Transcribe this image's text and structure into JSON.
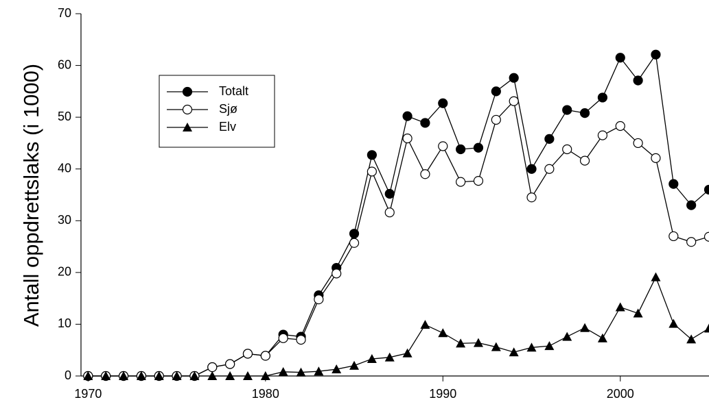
{
  "chart_data": {
    "type": "line",
    "ylabel": "Antall oppdrettslaks (i 1000)",
    "x": [
      1970,
      1971,
      1972,
      1973,
      1974,
      1975,
      1976,
      1977,
      1978,
      1979,
      1980,
      1981,
      1982,
      1983,
      1984,
      1985,
      1986,
      1987,
      1988,
      1989,
      1990,
      1991,
      1992,
      1993,
      1994,
      1995,
      1996,
      1997,
      1998,
      1999,
      2000,
      2001,
      2002,
      2003,
      2004,
      2005
    ],
    "series": [
      {
        "name": "Totalt",
        "color": "#000000",
        "marker": "circle-filled",
        "values": [
          0,
          0,
          0,
          0,
          0,
          0,
          0,
          1.7,
          2.3,
          4.3,
          3.9,
          8.0,
          7.6,
          15.6,
          20.9,
          27.5,
          42.7,
          35.2,
          50.2,
          48.9,
          52.7,
          43.8,
          44.1,
          55.0,
          57.6,
          40.0,
          45.8,
          51.4,
          50.8,
          53.8,
          61.5,
          57.1,
          62.1,
          37.1,
          33.0,
          36.0
        ]
      },
      {
        "name": "Sjø",
        "color": "#000000",
        "marker": "circle-open",
        "values": [
          0,
          0,
          0,
          0,
          0,
          0,
          0,
          1.7,
          2.3,
          4.3,
          3.9,
          7.3,
          7.0,
          14.8,
          19.8,
          25.7,
          39.5,
          31.6,
          45.9,
          39.0,
          44.4,
          37.5,
          37.7,
          49.5,
          53.1,
          34.5,
          40.0,
          43.8,
          41.6,
          46.5,
          48.3,
          45.0,
          42.1,
          27.0,
          25.9,
          26.9
        ]
      },
      {
        "name": "Elv",
        "color": "#000000",
        "marker": "triangle",
        "values": [
          0,
          0,
          0,
          0,
          0,
          0,
          0,
          0,
          0,
          0,
          0,
          0.8,
          0.7,
          0.9,
          1.3,
          2.0,
          3.3,
          3.6,
          4.4,
          9.9,
          8.3,
          6.3,
          6.4,
          5.6,
          4.6,
          5.5,
          5.8,
          7.6,
          9.3,
          7.3,
          13.3,
          12.1,
          19.1,
          10.1,
          7.1,
          9.2
        ]
      }
    ],
    "xlim": [
      1969.6,
      2005
    ],
    "xticks": [
      1970,
      1980,
      1990,
      2000
    ],
    "ylim": [
      0,
      70
    ],
    "yticks": [
      0,
      10,
      20,
      30,
      40,
      50,
      60,
      70
    ],
    "legend": "upper-left"
  }
}
